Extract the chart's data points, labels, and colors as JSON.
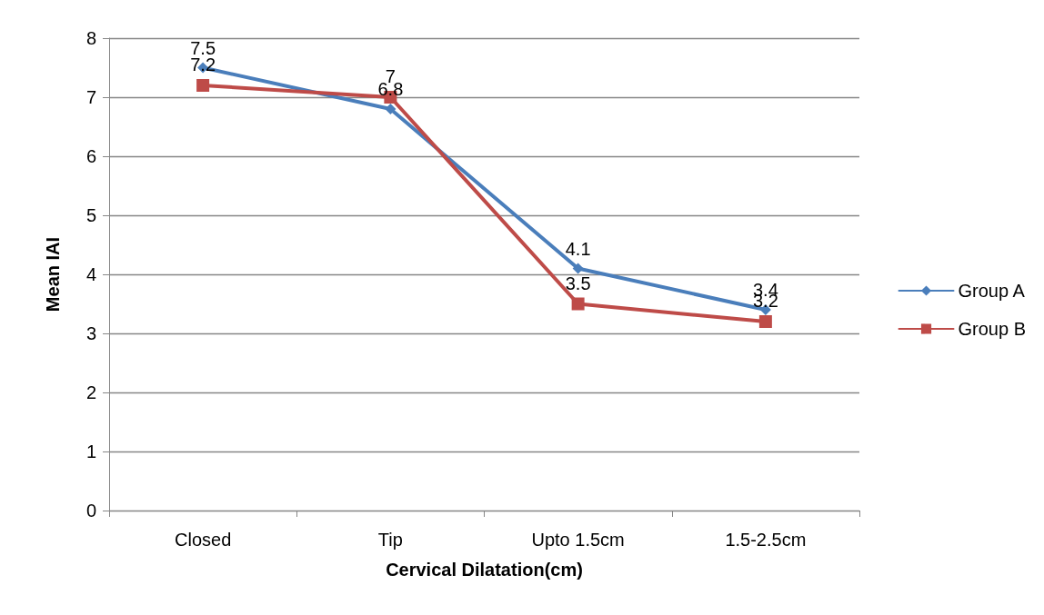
{
  "chart_data": {
    "type": "line",
    "xlabel": "Cervical Dilatation(cm)",
    "ylabel": "Mean IAI",
    "categories": [
      "Closed",
      "Tip",
      "Upto 1.5cm",
      "1.5-2.5cm"
    ],
    "series": [
      {
        "name": "Group A",
        "color": "#4a7ebb",
        "marker": "diamond",
        "values": [
          7.5,
          6.8,
          4.1,
          3.4
        ]
      },
      {
        "name": "Group B",
        "color": "#be4b48",
        "marker": "square",
        "values": [
          7.2,
          7,
          3.5,
          3.2
        ]
      }
    ],
    "ylim": [
      0,
      8
    ],
    "yticks": [
      0,
      1,
      2,
      3,
      4,
      5,
      6,
      7,
      8
    ],
    "grid": "y",
    "legend": "right",
    "data_labels": true,
    "line_style": "solid"
  }
}
